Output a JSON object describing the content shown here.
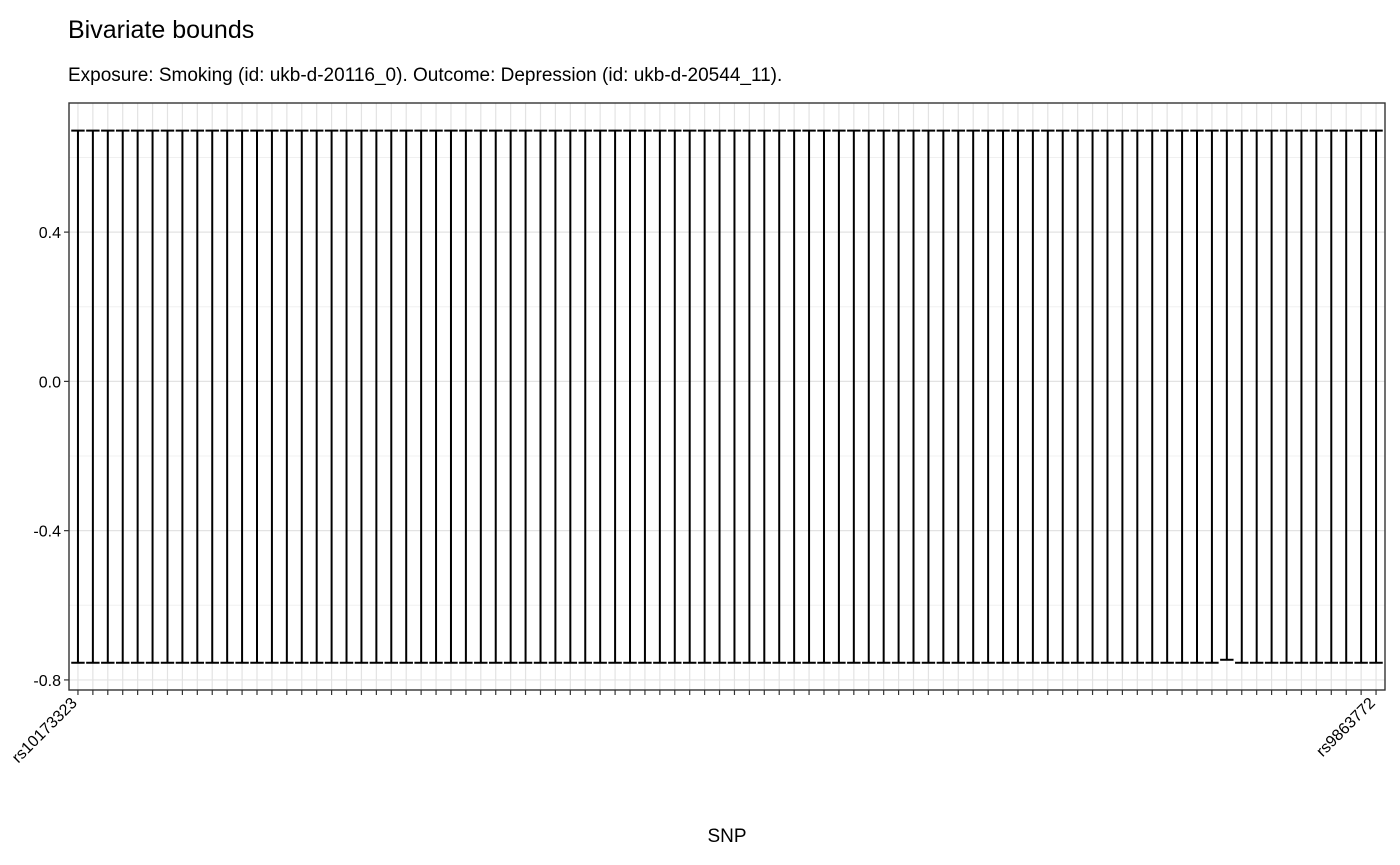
{
  "chart_data": {
    "type": "errorbar",
    "title": "Bivariate bounds",
    "subtitle": "Exposure: Smoking (id: ukb-d-20116_0). Outcome: Depression (id: ukb-d-20544_11).",
    "x_label": "SNP",
    "categories": [
      "rs10173323",
      null,
      null,
      null,
      null,
      null,
      null,
      null,
      null,
      null,
      null,
      null,
      null,
      null,
      null,
      null,
      null,
      null,
      null,
      null,
      null,
      null,
      null,
      null,
      null,
      null,
      null,
      null,
      null,
      null,
      null,
      null,
      null,
      null,
      null,
      null,
      null,
      null,
      null,
      null,
      null,
      null,
      null,
      null,
      null,
      null,
      null,
      null,
      null,
      null,
      null,
      null,
      null,
      null,
      null,
      null,
      null,
      null,
      null,
      null,
      null,
      null,
      null,
      null,
      null,
      null,
      null,
      null,
      null,
      null,
      null,
      null,
      null,
      null,
      null,
      null,
      null,
      null,
      null,
      null,
      null,
      null,
      null,
      null,
      null,
      null,
      null,
      "rs9863772"
    ],
    "upper": [
      0.672,
      0.672,
      0.672,
      0.672,
      0.672,
      0.672,
      0.672,
      0.672,
      0.672,
      0.672,
      0.672,
      0.672,
      0.672,
      0.672,
      0.672,
      0.672,
      0.672,
      0.672,
      0.672,
      0.672,
      0.672,
      0.672,
      0.672,
      0.672,
      0.672,
      0.672,
      0.672,
      0.672,
      0.672,
      0.672,
      0.672,
      0.672,
      0.672,
      0.672,
      0.672,
      0.672,
      0.672,
      0.672,
      0.672,
      0.672,
      0.672,
      0.672,
      0.672,
      0.672,
      0.672,
      0.672,
      0.672,
      0.672,
      0.672,
      0.672,
      0.672,
      0.672,
      0.672,
      0.672,
      0.672,
      0.672,
      0.672,
      0.672,
      0.672,
      0.672,
      0.672,
      0.672,
      0.672,
      0.672,
      0.672,
      0.672,
      0.672,
      0.672,
      0.672,
      0.672,
      0.672,
      0.672,
      0.672,
      0.672,
      0.672,
      0.672,
      0.672,
      0.672,
      0.672,
      0.672,
      0.672,
      0.672,
      0.672,
      0.672,
      0.672,
      0.672,
      0.672,
      0.672
    ],
    "lower": [
      -0.754,
      -0.754,
      -0.754,
      -0.754,
      -0.754,
      -0.754,
      -0.754,
      -0.754,
      -0.754,
      -0.754,
      -0.754,
      -0.754,
      -0.754,
      -0.754,
      -0.754,
      -0.754,
      -0.754,
      -0.754,
      -0.754,
      -0.754,
      -0.754,
      -0.754,
      -0.754,
      -0.754,
      -0.754,
      -0.754,
      -0.754,
      -0.754,
      -0.754,
      -0.754,
      -0.754,
      -0.754,
      -0.754,
      -0.754,
      -0.754,
      -0.754,
      -0.754,
      -0.754,
      -0.754,
      -0.754,
      -0.754,
      -0.754,
      -0.754,
      -0.754,
      -0.754,
      -0.754,
      -0.754,
      -0.754,
      -0.754,
      -0.754,
      -0.754,
      -0.754,
      -0.754,
      -0.754,
      -0.754,
      -0.754,
      -0.754,
      -0.754,
      -0.754,
      -0.754,
      -0.754,
      -0.754,
      -0.754,
      -0.754,
      -0.754,
      -0.754,
      -0.754,
      -0.754,
      -0.754,
      -0.754,
      -0.754,
      -0.754,
      -0.754,
      -0.754,
      -0.754,
      -0.754,
      -0.754,
      -0.746,
      -0.754,
      -0.754,
      -0.754,
      -0.754,
      -0.754,
      -0.754,
      -0.754,
      -0.754,
      -0.754,
      -0.754
    ],
    "color": "#000000",
    "ylim": [
      -0.827,
      0.746
    ],
    "yticks": [
      -0.8,
      -0.4,
      {
        "value": 0,
        "label": "0.0"
      },
      0.4
    ],
    "yminorticks": [
      -0.6,
      -0.2,
      0.2,
      0.6
    ],
    "grid": true
  }
}
